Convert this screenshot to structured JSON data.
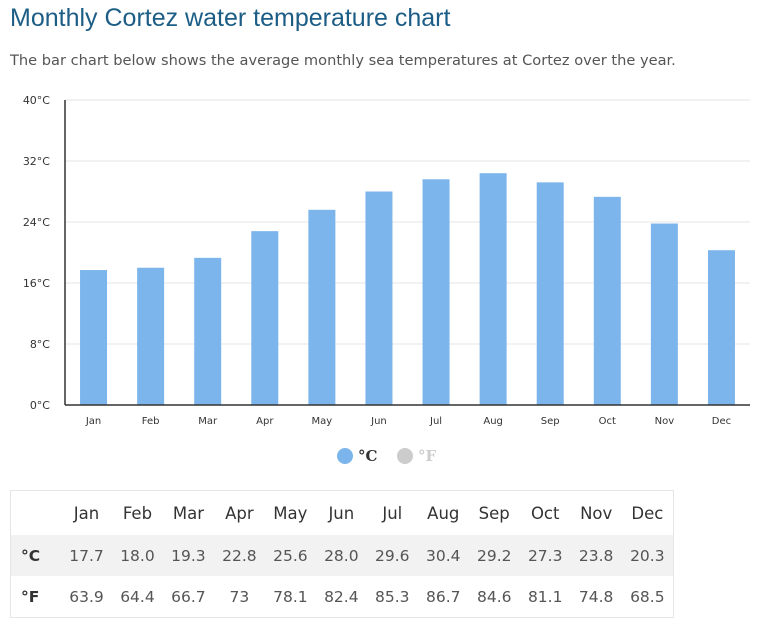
{
  "title": "Monthly Cortez water temperature chart",
  "subtitle": "The bar chart below shows the average monthly sea temperatures at Cortez over the year.",
  "chart_data": {
    "type": "bar",
    "categories": [
      "Jan",
      "Feb",
      "Mar",
      "Apr",
      "May",
      "Jun",
      "Jul",
      "Aug",
      "Sep",
      "Oct",
      "Nov",
      "Dec"
    ],
    "series": [
      {
        "name": "°C",
        "values": [
          17.7,
          18.0,
          19.3,
          22.8,
          25.6,
          28.0,
          29.6,
          30.4,
          29.2,
          27.3,
          23.8,
          20.3
        ],
        "color": "#7cb5ec",
        "visible": true
      },
      {
        "name": "°F",
        "values": [
          63.9,
          64.4,
          66.7,
          73,
          78.1,
          82.4,
          85.3,
          86.7,
          84.6,
          81.1,
          74.8,
          68.5
        ],
        "color": "#cccccc",
        "visible": false
      }
    ],
    "yticks": [
      "0°C",
      "8°C",
      "16°C",
      "24°C",
      "32°C",
      "40°C"
    ],
    "ylim": [
      0,
      40
    ],
    "grid": true,
    "legend_position": "bottom-center"
  },
  "legend": {
    "celsius_label": "°C",
    "fahrenheit_label": "°F"
  },
  "table": {
    "months": [
      "Jan",
      "Feb",
      "Mar",
      "Apr",
      "May",
      "Jun",
      "Jul",
      "Aug",
      "Sep",
      "Oct",
      "Nov",
      "Dec"
    ],
    "rows": [
      {
        "unit": "°C",
        "values": [
          "17.7",
          "18.0",
          "19.3",
          "22.8",
          "25.6",
          "28.0",
          "29.6",
          "30.4",
          "29.2",
          "27.3",
          "23.8",
          "20.3"
        ]
      },
      {
        "unit": "°F",
        "values": [
          "63.9",
          "64.4",
          "66.7",
          "73",
          "78.1",
          "82.4",
          "85.3",
          "86.7",
          "84.6",
          "81.1",
          "74.8",
          "68.5"
        ]
      }
    ]
  }
}
